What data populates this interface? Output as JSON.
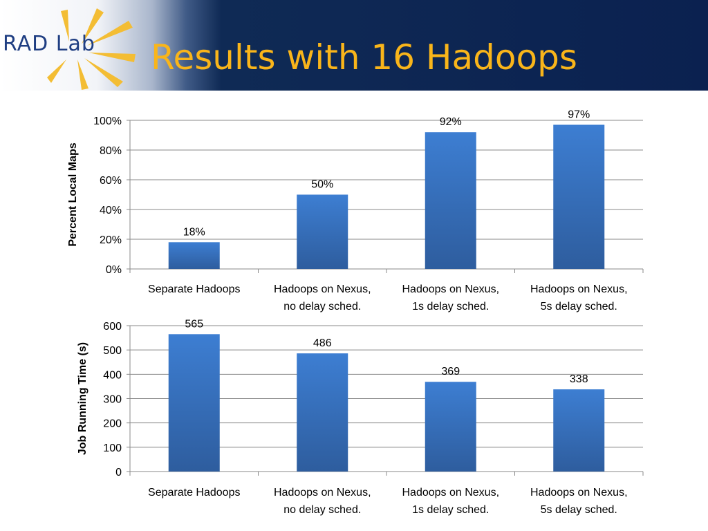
{
  "header": {
    "logo_text": "RAD Lab",
    "title": "Results with 16 Hadoops"
  },
  "colors": {
    "title": "#f9b51a",
    "header_bg": "#0b2150",
    "bar_top": "#3d7ed2",
    "bar_bottom": "#2e5d9e",
    "logo_rays": "#f3bd34"
  },
  "chart_data": [
    {
      "type": "bar",
      "title": "",
      "xlabel": "",
      "ylabel": "Percent Local Maps",
      "categories": [
        [
          "Separate Hadoops"
        ],
        [
          "Hadoops on Nexus,",
          "no delay sched."
        ],
        [
          "Hadoops on Nexus,",
          "1s delay sched."
        ],
        [
          "Hadoops on Nexus,",
          "5s delay sched."
        ]
      ],
      "values": [
        18,
        50,
        92,
        97
      ],
      "data_labels": [
        "18%",
        "50%",
        "92%",
        "97%"
      ],
      "ylim": [
        0,
        100
      ],
      "yticks": [
        0,
        20,
        40,
        60,
        80,
        100
      ],
      "ytick_labels": [
        "0%",
        "20%",
        "40%",
        "60%",
        "80%",
        "100%"
      ],
      "grid": true,
      "legend": "none"
    },
    {
      "type": "bar",
      "title": "",
      "xlabel": "",
      "ylabel": "Job Running Time (s)",
      "categories": [
        [
          "Separate Hadoops"
        ],
        [
          "Hadoops on Nexus,",
          "no delay sched."
        ],
        [
          "Hadoops on Nexus,",
          "1s delay sched."
        ],
        [
          "Hadoops on Nexus,",
          "5s delay sched."
        ]
      ],
      "values": [
        565,
        486,
        369,
        338
      ],
      "data_labels": [
        "565",
        "486",
        "369",
        "338"
      ],
      "ylim": [
        0,
        600
      ],
      "yticks": [
        0,
        100,
        200,
        300,
        400,
        500,
        600
      ],
      "ytick_labels": [
        "0",
        "100",
        "200",
        "300",
        "400",
        "500",
        "600"
      ],
      "grid": true,
      "legend": "none"
    }
  ]
}
